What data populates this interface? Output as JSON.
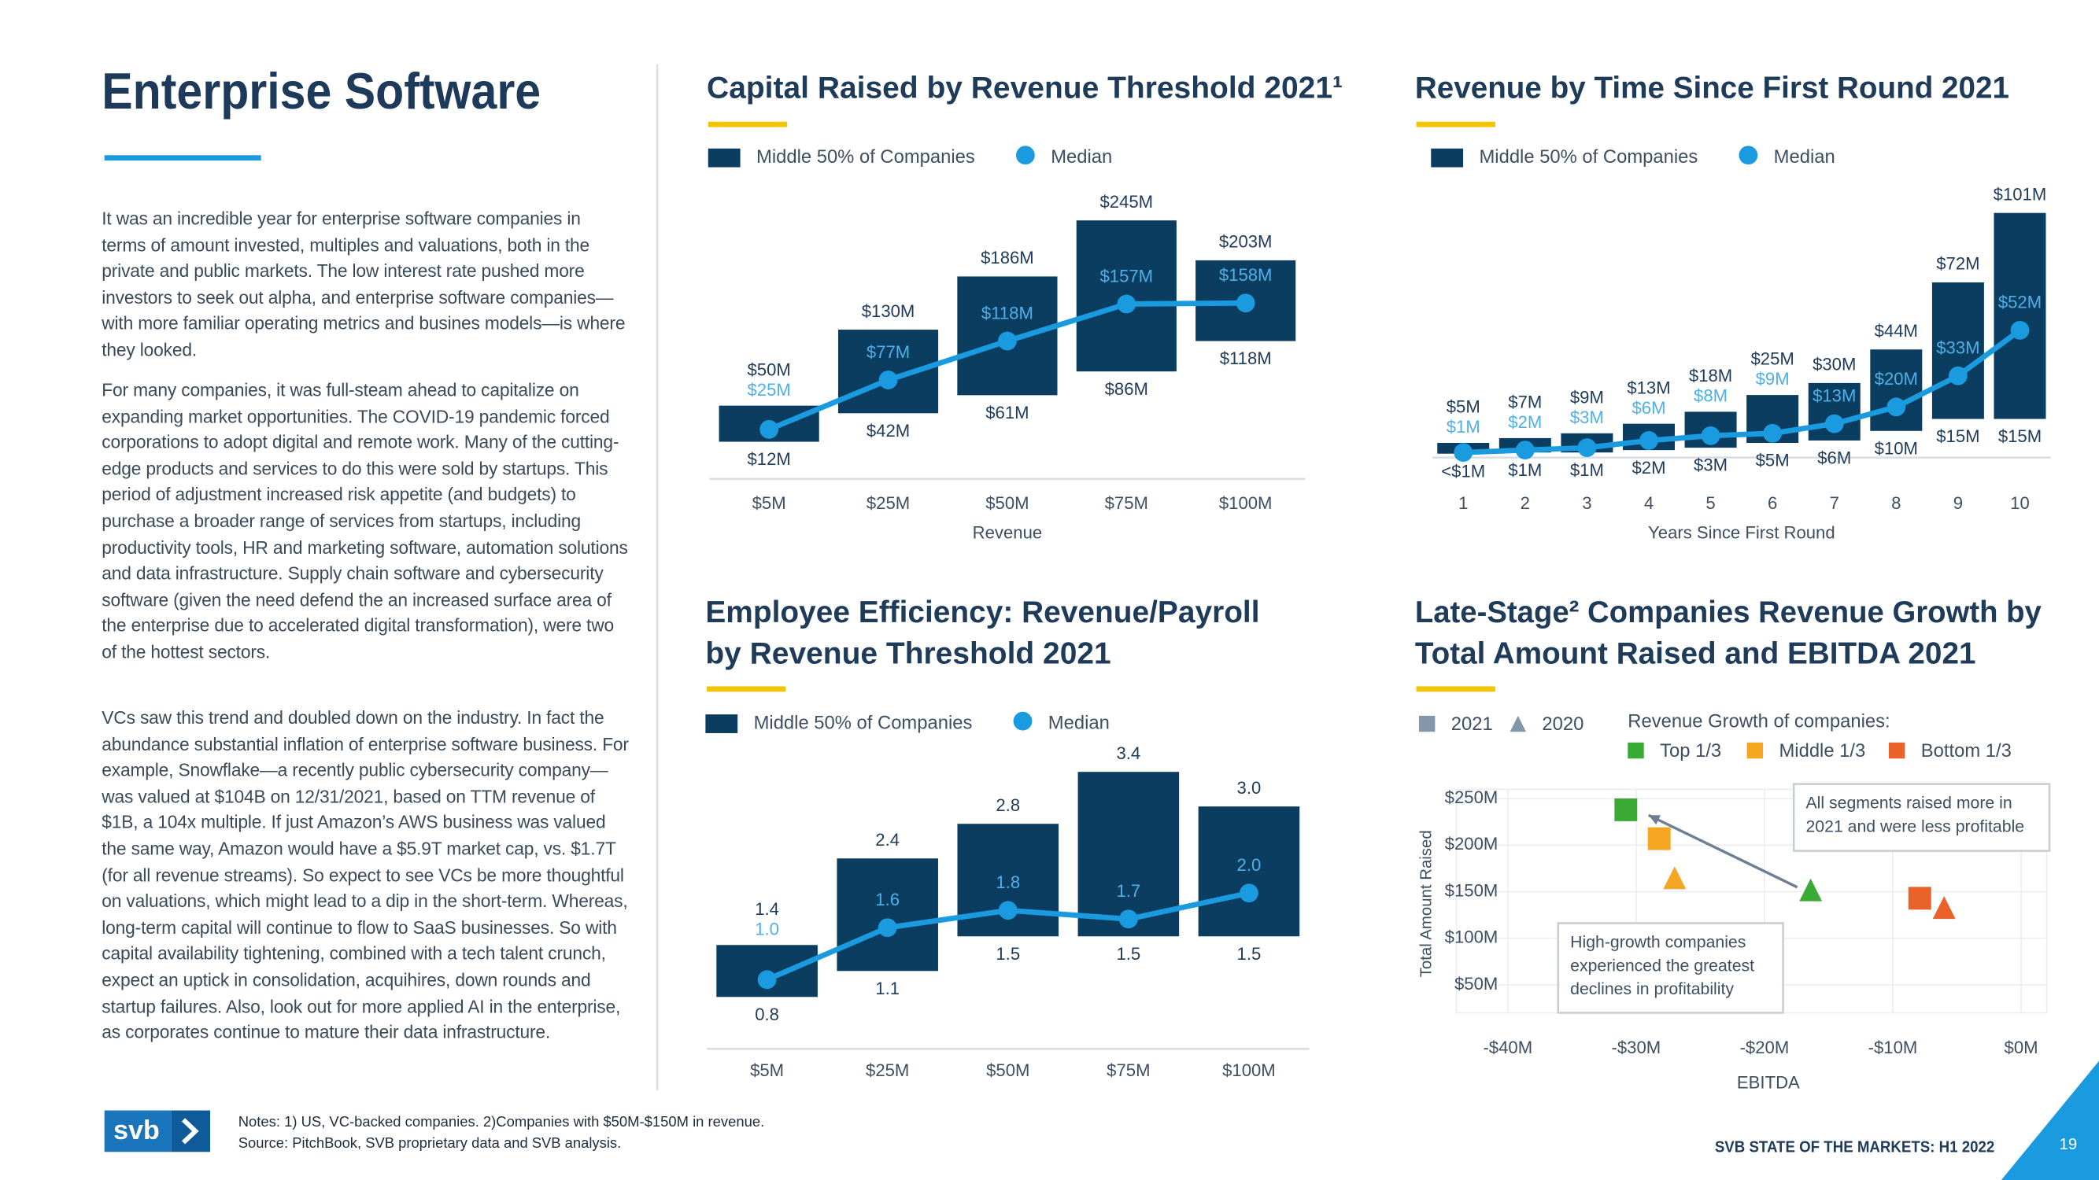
{
  "page": {
    "title": "Enterprise Software",
    "paragraphs": [
      "It was an incredible year for enterprise software companies in terms of amount invested, multiples and valuations, both in the private and public markets. The low interest rate pushed more investors to seek out alpha, and enterprise software companies—with more familiar operating metrics and busines models—is where they looked.",
      "For many companies, it was full-steam ahead to capitalize on expanding market opportunities. The COVID-19 pandemic forced corporations to adopt digital and remote work. Many of the cutting-edge products and services to do this were sold by startups. This period of adjustment increased risk appetite (and budgets) to purchase a broader range of services from startups, including productivity tools, HR and marketing software, automation solutions and data infrastructure. Supply chain software and cybersecurity software (given the need defend the an increased surface area of the enterprise due to accelerated digital transformation), were two of the hottest sectors.",
      "VCs saw this trend and doubled down on the industry. In fact the abundance substantial inflation of enterprise software business. For example, Snowflake—a recently public cybersecurity company—was valued at $104B on 12/31/2021, based on TTM revenue of $1B, a 104x multiple. If just Amazon’s AWS business was valued the same way, Amazon would have a $5.9T market cap, vs. $1.7T (for all revenue streams). So expect to see VCs be more thoughtful on valuations, which might lead to a dip in the short-term. Whereas, long-term capital will continue to flow to SaaS businesses. So with capital availability tightening, combined with a tech talent crunch, expect an uptick in consolidation, acquihires, down rounds and startup failures. Also, look out for more applied AI in the enterprise, as corporates continue to mature their data infrastructure."
    ],
    "notes": [
      "Notes: 1) US, VC-backed companies. 2)Companies with $50M-$150M in revenue.",
      "Source: PitchBook, SVB proprietary data and SVB analysis."
    ],
    "logo": "svb",
    "footer": "SVB STATE OF THE MARKETS: H1 2022",
    "page_number": "19"
  },
  "chart_data": [
    {
      "type": "range",
      "title": [
        "Capital Raised by Revenue Threshold 2021¹"
      ],
      "x_label": "Revenue",
      "categories": [
        "$5M",
        "$25M",
        "$50M",
        "$75M",
        "$100M"
      ],
      "ylim": [
        -30,
        270
      ],
      "series": [
        {
          "name": "Middle 50% of Companies",
          "color": "#0b3d61",
          "low": [
            12,
            42,
            61,
            86,
            118
          ],
          "high": [
            50,
            130,
            186,
            245,
            203
          ],
          "low_labels": [
            "$12M",
            "$42M",
            "$61M",
            "$86M",
            "$118M"
          ],
          "high_labels": [
            "$50M",
            "$130M",
            "$186M",
            "$245M",
            "$203M"
          ]
        },
        {
          "name": "Median",
          "color": "#1a9be0",
          "values": [
            25,
            77,
            118,
            157,
            158
          ],
          "value_labels": [
            "$25M",
            "$77M",
            "$118M",
            "$157M",
            "$158M"
          ]
        }
      ]
    },
    {
      "type": "range",
      "title": [
        "Revenue by Time Since First Round 2021"
      ],
      "x_label": "Years Since First Round",
      "categories": [
        "1",
        "2",
        "3",
        "4",
        "5",
        "6",
        "7",
        "8",
        "9",
        "10"
      ],
      "ylim": [
        0,
        105
      ],
      "series": [
        {
          "name": "Middle 50% of Companies",
          "color": "#0b3d61",
          "low": [
            0.5,
            1,
            1,
            2,
            3,
            5,
            6,
            10,
            15,
            15
          ],
          "high": [
            5,
            7,
            9,
            13,
            18,
            25,
            30,
            44,
            72,
            101
          ],
          "low_labels": [
            "<$1M",
            "$1M",
            "$1M",
            "$2M",
            "$3M",
            "$5M",
            "$6M",
            "$10M",
            "$15M",
            "$15M"
          ],
          "high_labels": [
            "$5M",
            "$7M",
            "$9M",
            "$13M",
            "$18M",
            "$25M",
            "$30M",
            "$44M",
            "$72M",
            "$101M"
          ]
        },
        {
          "name": "Median",
          "color": "#1a9be0",
          "values": [
            1,
            2,
            3,
            6,
            8,
            9,
            13,
            20,
            33,
            52
          ],
          "value_labels": [
            "$1M",
            "$2M",
            "$3M",
            "$6M",
            "$8M",
            "$9M",
            "$13M",
            "$20M",
            "$33M",
            "$52M"
          ]
        }
      ]
    },
    {
      "type": "range",
      "title": [
        "Employee Efficiency: Revenue/Payroll",
        "by Revenue Threshold 2021"
      ],
      "categories": [
        "$5M",
        "$25M",
        "$50M",
        "$75M",
        "$100M"
      ],
      "ylim": [
        0.2,
        3.6
      ],
      "series": [
        {
          "name": "Middle 50% of Companies",
          "color": "#0b3d61",
          "low": [
            0.8,
            1.1,
            1.5,
            1.5,
            1.5
          ],
          "high": [
            1.4,
            2.4,
            2.8,
            3.4,
            3.0
          ],
          "low_labels": [
            "0.8",
            "1.1",
            "1.5",
            "1.5",
            "1.5"
          ],
          "high_labels": [
            "1.4",
            "2.4",
            "2.8",
            "3.4",
            "3.0"
          ]
        },
        {
          "name": "Median",
          "color": "#1a9be0",
          "values": [
            1.0,
            1.6,
            1.8,
            1.7,
            2.0
          ],
          "value_labels": [
            "1.0",
            "1.6",
            "1.8",
            "1.7",
            "2.0"
          ]
        }
      ]
    },
    {
      "type": "scatter",
      "title": [
        "Late-Stage² Companies Revenue Growth by",
        "Total Amount Raised and EBITDA 2021"
      ],
      "x_label": "EBITDA",
      "y_label": "Total Amount Raised",
      "xlim": [
        -44,
        2
      ],
      "xticks": [
        {
          "value": -40,
          "label": "-$40M"
        },
        {
          "value": -30,
          "label": "-$30M"
        },
        {
          "value": -20,
          "label": "-$20M"
        },
        {
          "value": -10,
          "label": "-$10M"
        },
        {
          "value": 0,
          "label": "$0M"
        }
      ],
      "ylim": [
        20,
        260
      ],
      "yticks": [
        {
          "value": 50,
          "label": "$50M"
        },
        {
          "value": 100,
          "label": "$100M"
        },
        {
          "value": 150,
          "label": "$150M"
        },
        {
          "value": 200,
          "label": "$200M"
        },
        {
          "value": 250,
          "label": "$250M"
        }
      ],
      "grid": true,
      "markers": [
        {
          "name": "2021",
          "shape": "square",
          "color": "#8496a9"
        },
        {
          "name": "2020",
          "shape": "triangle",
          "color": "#8496a9"
        }
      ],
      "legend_title": "Revenue Growth of companies:",
      "series": [
        {
          "name": "Top 1/3",
          "color": "#3aaa35",
          "x": [
            -30.8,
            -16.4
          ],
          "values": [
            238,
            152
          ]
        },
        {
          "name": "Middle 1/3",
          "color": "#f5a623",
          "x": [
            -28.2,
            -27
          ],
          "values": [
            207,
            165
          ]
        },
        {
          "name": "Bottom 1/3",
          "color": "#e8622a",
          "x": [
            -7.9,
            -6
          ],
          "values": [
            143,
            133
          ]
        }
      ],
      "annotations": [
        {
          "lines": [
            "All segments raised more in",
            "2021 and were less profitable"
          ]
        },
        {
          "lines": [
            "High-growth companies",
            "experienced the greatest",
            "declines in profitability"
          ]
        }
      ]
    }
  ]
}
